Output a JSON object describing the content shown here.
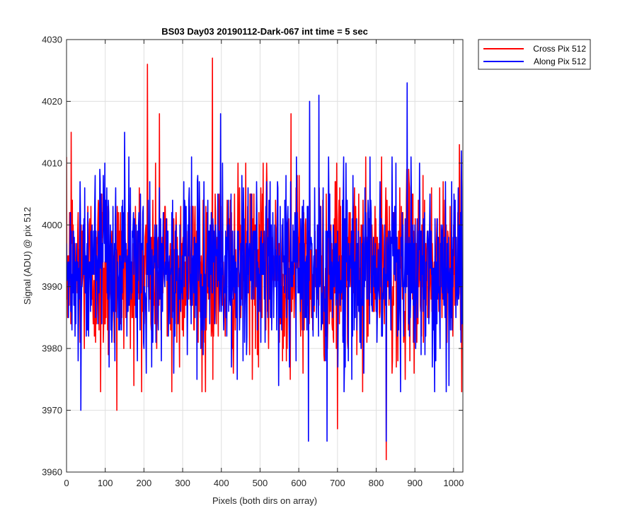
{
  "chart_data": {
    "type": "line",
    "title": "BS03 Day03 20190112-Dark-067 int time = 5 sec",
    "xlabel": "Pixels (both dirs on array)",
    "ylabel": "Signal (ADU) @ pix 512",
    "xlim": [
      0,
      1024
    ],
    "ylim": [
      3960,
      4030
    ],
    "xticks": [
      0,
      100,
      200,
      300,
      400,
      500,
      600,
      700,
      800,
      900,
      1000
    ],
    "yticks": [
      3960,
      3970,
      3980,
      3990,
      4000,
      4010,
      4020,
      4030
    ],
    "grid": true,
    "legend_position": "outside-top-right",
    "n_points": 1024,
    "series": [
      {
        "name": "Cross Pix 512",
        "color": "#ff0000",
        "summary": "noisy dark signal, mostly 3980-4005, mean ~3993",
        "peaks": [
          {
            "x": 209,
            "y": 4026
          },
          {
            "x": 377,
            "y": 4027
          },
          {
            "x": 240,
            "y": 4018
          },
          {
            "x": 580,
            "y": 4018
          },
          {
            "x": 12,
            "y": 4015
          },
          {
            "x": 130,
            "y": 3970
          },
          {
            "x": 88,
            "y": 3973
          },
          {
            "x": 272,
            "y": 3973
          },
          {
            "x": 350,
            "y": 3973
          },
          {
            "x": 700,
            "y": 3967
          },
          {
            "x": 826,
            "y": 3962
          },
          {
            "x": 1015,
            "y": 4013
          }
        ]
      },
      {
        "name": "Along Pix 512",
        "color": "#0000ff",
        "summary": "noisy dark signal, mostly 3980-4005, mean ~3993",
        "peaks": [
          {
            "x": 37,
            "y": 3970
          },
          {
            "x": 150,
            "y": 4015
          },
          {
            "x": 628,
            "y": 4020
          },
          {
            "x": 652,
            "y": 4021
          },
          {
            "x": 880,
            "y": 4023
          },
          {
            "x": 625,
            "y": 3965
          },
          {
            "x": 673,
            "y": 3965
          },
          {
            "x": 826,
            "y": 3965
          },
          {
            "x": 1020,
            "y": 4012
          },
          {
            "x": 398,
            "y": 4018
          }
        ]
      }
    ]
  }
}
